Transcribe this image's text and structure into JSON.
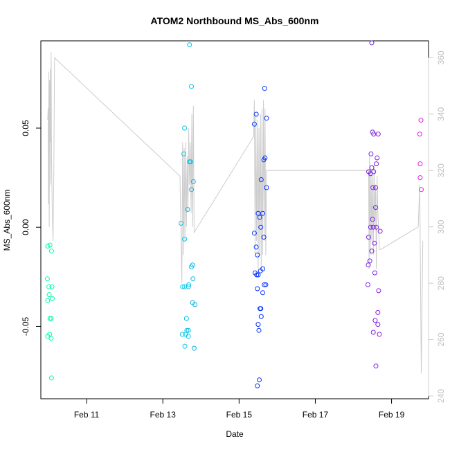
{
  "chart_data": {
    "type": "scatter",
    "title": "ATOM2 Northbound MS_Abs_600nm",
    "xlabel": "Date",
    "ylabel": "MS_Abs_600nm",
    "x_unit": "day",
    "xlim": [
      9.8,
      19.97
    ],
    "ylim": [
      -0.0865,
      0.094
    ],
    "y2lim": [
      239,
      366
    ],
    "x_ticks": [
      11,
      13,
      15,
      17,
      19
    ],
    "x_tick_labels": [
      "Feb 11",
      "Feb 13",
      "Feb 15",
      "Feb 17",
      "Feb 19"
    ],
    "y_ticks": [
      -0.05,
      0.0,
      0.05
    ],
    "y_tick_labels": [
      "-0.05",
      "0.00",
      "0.05"
    ],
    "y2_ticks": [
      240,
      260,
      280,
      300,
      320,
      340,
      360
    ],
    "y2_tick_labels": [
      "240",
      "260",
      "280",
      "300",
      "320",
      "340",
      "360"
    ],
    "grid": false,
    "legend": "none",
    "colors": {
      "line": "#cccccc",
      "right_axis": "#cccccc",
      "frame": "#000000",
      "point_scale": [
        "#00ffaa",
        "#00c8e8",
        "#0030ff",
        "#7a20e0",
        "#e020e0"
      ]
    },
    "points": [
      [
        9.98,
        -0.0095
      ],
      [
        10.04,
        -0.009
      ],
      [
        10.08,
        -0.012
      ],
      [
        9.97,
        -0.026
      ],
      [
        10.01,
        -0.03
      ],
      [
        10.09,
        -0.03
      ],
      [
        10.02,
        -0.034
      ],
      [
        9.98,
        -0.037
      ],
      [
        10.1,
        -0.036
      ],
      [
        10.04,
        -0.046
      ],
      [
        10.07,
        -0.046
      ],
      [
        10.03,
        -0.054
      ],
      [
        9.98,
        -0.055
      ],
      [
        10.07,
        -0.056
      ],
      [
        10.08,
        -0.076
      ],
      [
        13.7,
        0.092
      ],
      [
        13.75,
        0.071
      ],
      [
        13.57,
        0.05
      ],
      [
        13.55,
        0.037
      ],
      [
        13.73,
        0.033
      ],
      [
        13.7,
        0.033
      ],
      [
        13.8,
        0.023
      ],
      [
        13.75,
        0.019
      ],
      [
        13.65,
        0.009
      ],
      [
        13.48,
        0.002
      ],
      [
        13.57,
        -0.006
      ],
      [
        13.78,
        -0.019
      ],
      [
        13.75,
        -0.02
      ],
      [
        13.79,
        -0.026
      ],
      [
        13.68,
        -0.029
      ],
      [
        13.52,
        -0.03
      ],
      [
        13.57,
        -0.03
      ],
      [
        13.67,
        -0.03
      ],
      [
        13.78,
        -0.038
      ],
      [
        13.84,
        -0.039
      ],
      [
        13.62,
        -0.046
      ],
      [
        13.63,
        -0.052
      ],
      [
        13.67,
        -0.052
      ],
      [
        13.51,
        -0.054
      ],
      [
        13.6,
        -0.054
      ],
      [
        13.67,
        -0.055
      ],
      [
        13.58,
        -0.06
      ],
      [
        13.82,
        -0.061
      ],
      [
        15.67,
        0.07
      ],
      [
        15.45,
        0.057
      ],
      [
        15.72,
        0.055
      ],
      [
        15.4,
        0.052
      ],
      [
        15.68,
        0.035
      ],
      [
        15.65,
        0.034
      ],
      [
        15.58,
        0.024
      ],
      [
        15.72,
        0.02
      ],
      [
        15.5,
        0.007
      ],
      [
        15.62,
        0.007
      ],
      [
        15.54,
        0.005
      ],
      [
        15.57,
        0.0
      ],
      [
        15.4,
        -0.003
      ],
      [
        15.65,
        -0.005
      ],
      [
        15.45,
        -0.01
      ],
      [
        15.48,
        -0.014
      ],
      [
        15.62,
        -0.021
      ],
      [
        15.56,
        -0.022
      ],
      [
        15.42,
        -0.023
      ],
      [
        15.46,
        -0.024
      ],
      [
        15.5,
        -0.024
      ],
      [
        15.66,
        -0.029
      ],
      [
        15.7,
        -0.029
      ],
      [
        15.48,
        -0.031
      ],
      [
        15.62,
        -0.033
      ],
      [
        15.55,
        -0.041
      ],
      [
        15.57,
        -0.041
      ],
      [
        15.58,
        -0.045
      ],
      [
        15.5,
        -0.049
      ],
      [
        15.52,
        -0.052
      ],
      [
        15.53,
        -0.077
      ],
      [
        15.48,
        -0.08
      ],
      [
        18.48,
        0.093
      ],
      [
        18.5,
        0.048
      ],
      [
        18.53,
        0.047
      ],
      [
        18.65,
        0.047
      ],
      [
        18.46,
        0.037
      ],
      [
        18.62,
        0.035
      ],
      [
        18.6,
        0.032
      ],
      [
        18.48,
        0.03
      ],
      [
        18.4,
        0.028
      ],
      [
        18.53,
        0.028
      ],
      [
        18.45,
        0.027
      ],
      [
        18.51,
        0.02
      ],
      [
        18.58,
        0.02
      ],
      [
        18.58,
        0.01
      ],
      [
        18.5,
        0.004
      ],
      [
        18.45,
        0.0
      ],
      [
        18.52,
        0.0
      ],
      [
        18.6,
        0.0
      ],
      [
        18.7,
        -0.002
      ],
      [
        18.4,
        -0.005
      ],
      [
        18.55,
        -0.008
      ],
      [
        18.48,
        -0.012
      ],
      [
        18.43,
        -0.017
      ],
      [
        18.39,
        -0.019
      ],
      [
        18.56,
        -0.023
      ],
      [
        18.38,
        -0.029
      ],
      [
        18.66,
        -0.032
      ],
      [
        18.64,
        -0.043
      ],
      [
        18.57,
        -0.047
      ],
      [
        18.64,
        -0.049
      ],
      [
        18.52,
        -0.053
      ],
      [
        18.68,
        -0.054
      ],
      [
        18.59,
        -0.07
      ],
      [
        19.77,
        0.054
      ],
      [
        19.74,
        0.047
      ],
      [
        19.75,
        0.032
      ],
      [
        19.75,
        0.025
      ],
      [
        19.78,
        0.019
      ]
    ],
    "line_series": {
      "name": "",
      "axis": "right",
      "x": [
        9.98,
        9.99,
        10.0,
        10.01,
        10.02,
        10.03,
        10.04,
        10.05,
        10.06,
        10.07,
        10.08,
        10.1,
        10.12,
        10.14,
        10.16,
        13.45,
        13.5,
        13.52,
        13.54,
        13.56,
        13.58,
        13.6,
        13.62,
        13.64,
        13.66,
        13.68,
        13.7,
        13.72,
        13.74,
        13.76,
        13.78,
        13.8,
        13.82,
        15.38,
        15.4,
        15.42,
        15.44,
        15.46,
        15.48,
        15.5,
        15.52,
        15.54,
        15.56,
        15.58,
        15.6,
        15.62,
        15.64,
        15.66,
        15.68,
        15.7,
        15.72,
        18.4,
        18.41,
        18.42,
        18.44,
        18.46,
        18.48,
        18.5,
        18.52,
        18.54,
        18.56,
        18.58,
        18.6,
        18.62,
        18.64,
        18.66,
        18.68,
        18.72,
        19.7,
        19.74,
        19.78,
        19.82
      ],
      "y": [
        338,
        342,
        308,
        355,
        300,
        352,
        330,
        356,
        315,
        362,
        325,
        305,
        295,
        318,
        360,
        318,
        280,
        330,
        290,
        328,
        295,
        330,
        300,
        325,
        305,
        335,
        315,
        330,
        305,
        340,
        300,
        343,
        298,
        332,
        345,
        290,
        340,
        295,
        338,
        285,
        335,
        290,
        340,
        285,
        342,
        290,
        345,
        295,
        342,
        290,
        320,
        320,
        285,
        325,
        290,
        320,
        295,
        318,
        290,
        322,
        300,
        315,
        285,
        318,
        305,
        300,
        292,
        292,
        300,
        315,
        248,
        295
      ]
    }
  }
}
